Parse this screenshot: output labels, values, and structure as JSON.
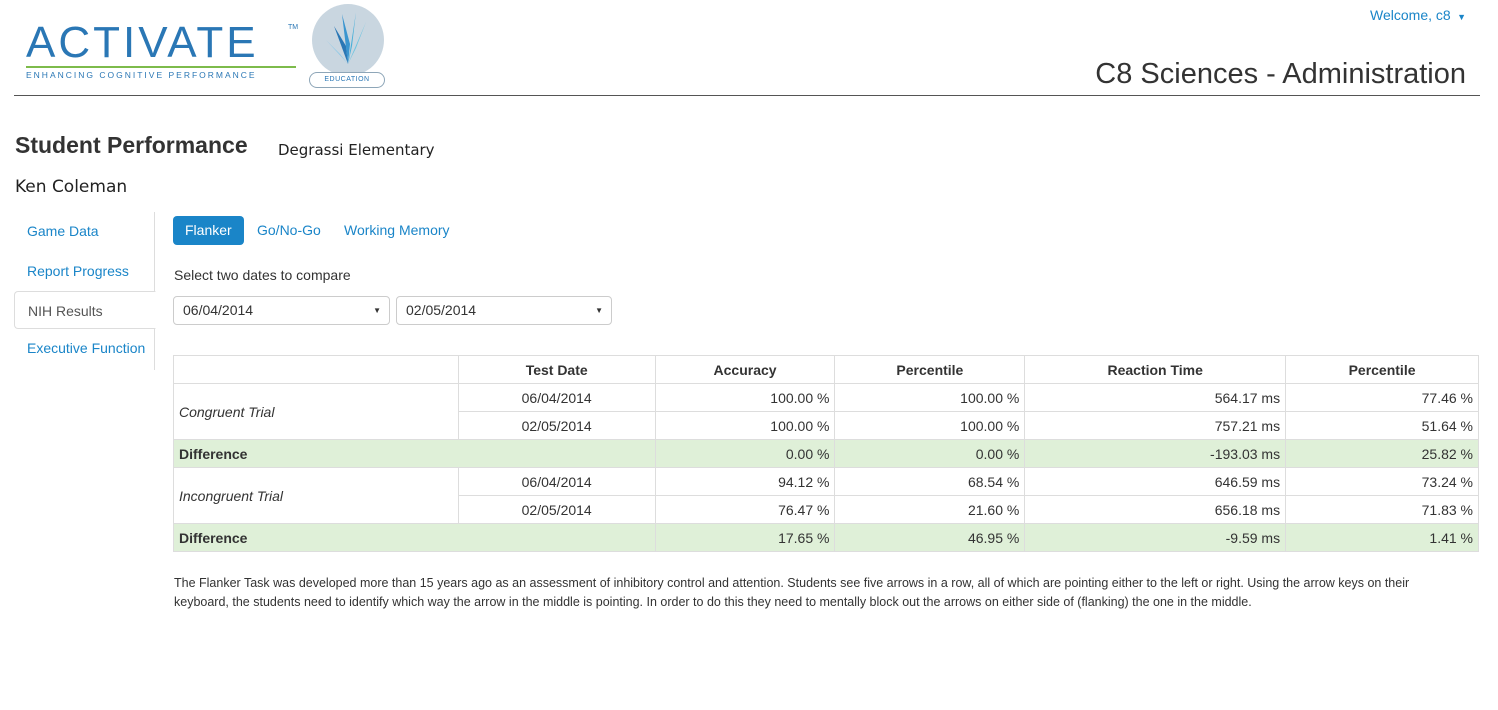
{
  "header": {
    "logo_word": "ACTIVATE",
    "logo_tm": "TM",
    "logo_tagline": "ENHANCING COGNITIVE PERFORMANCE",
    "logo_badge": "EDUCATION",
    "welcome": "Welcome, c8",
    "app_title": "C8 Sciences - Administration"
  },
  "page": {
    "title": "Student Performance",
    "school": "Degrassi Elementary",
    "student": "Ken Coleman"
  },
  "sidenav": {
    "items": [
      {
        "label": "Game Data"
      },
      {
        "label": "Report Progress"
      },
      {
        "label": "NIH Results"
      },
      {
        "label": "Executive Function"
      }
    ],
    "active": "NIH Results"
  },
  "tabs": [
    {
      "label": "Flanker"
    },
    {
      "label": "Go/No-Go"
    },
    {
      "label": "Working Memory"
    }
  ],
  "compare": {
    "label": "Select two dates to compare",
    "date1": "06/04/2014",
    "date2": "02/05/2014"
  },
  "table": {
    "headers": [
      "",
      "Test Date",
      "Accuracy",
      "Percentile",
      "Reaction Time",
      "Percentile"
    ],
    "congruent": {
      "label": "Congruent Trial",
      "rows": [
        [
          "06/04/2014",
          "100.00 %",
          "100.00 %",
          "564.17 ms",
          "77.46 %"
        ],
        [
          "02/05/2014",
          "100.00 %",
          "100.00 %",
          "757.21 ms",
          "51.64 %"
        ]
      ],
      "difference": [
        "Difference",
        "0.00 %",
        "0.00 %",
        "-193.03 ms",
        "25.82 %"
      ]
    },
    "incongruent": {
      "label": "Incongruent Trial",
      "rows": [
        [
          "06/04/2014",
          "94.12 %",
          "68.54 %",
          "646.59 ms",
          "73.24 %"
        ],
        [
          "02/05/2014",
          "76.47 %",
          "21.60 %",
          "656.18 ms",
          "71.83 %"
        ]
      ],
      "difference": [
        "Difference",
        "17.65 %",
        "46.95 %",
        "-9.59 ms",
        "1.41 %"
      ]
    }
  },
  "description": "The Flanker Task was developed more than 15 years ago as an assessment of inhibitory control and attention. Students see five arrows in a row, all of which are pointing either to the left or right. Using the arrow keys on their keyboard, the students need to identify which way the arrow in the middle is pointing. In order to do this they need to mentally block out the arrows on either side of (flanking) the one in the middle.",
  "colors": {
    "accent": "#1a85c8",
    "difference_bg": "#dff0d8",
    "logo_green": "#7dbb4b"
  }
}
